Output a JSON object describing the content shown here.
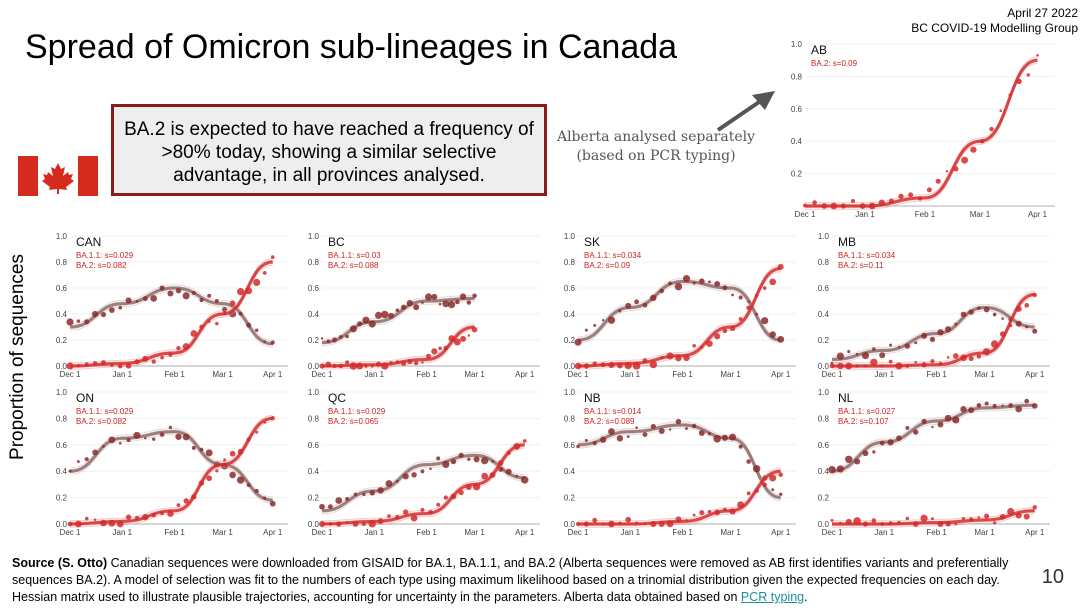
{
  "header": {
    "date": "April 27 2022",
    "org": "BC COVID-19 Modelling Group",
    "title": "Spread of Omicron sub-lineages in Canada"
  },
  "callout": "BA.2 is expected to have reached a frequency of >80% today, showing a similar selective advantage, in all provinces analysed.",
  "alberta_note": "Alberta analysed separately (based on PCR typing)",
  "ylabel": "Proportion of sequences",
  "footer": {
    "source_bold": "Source (S. Otto)",
    "text": " Canadian sequences were downloaded from GISAID for BA.1, BA.1.1, and BA.2 (Alberta sequences were removed as AB first identifies variants and preferentially sequences BA.2). A model of selection was fit to the numbers of each type using maximum likelihood based on a trinomial distribution given the expected frequencies on each day. Hessian matrix used to illustrate plausible trajectories, accounting for uncertainty in the parameters. Alberta data obtained based on ",
    "link": "PCR typing",
    "end": "."
  },
  "page_number": "10",
  "colors": {
    "ba11": "#8b2a2a",
    "ba11_line": "#8a6a6a",
    "ba2": "#d42a2a",
    "callout_border": "#8b1a1a",
    "link": "#1a8fa0"
  },
  "chart_data": {
    "type": "line",
    "x_ticks": [
      "Dec 1",
      "Jan 1",
      "Feb 1",
      "Mar 1",
      "Apr 1"
    ],
    "y_ticks": [
      "0.0",
      "0.2",
      "0.4",
      "0.6",
      "0.8",
      "1.0"
    ],
    "ylim": [
      0,
      1
    ],
    "panels": [
      {
        "name": "CAN",
        "ba11_label": "BA.1.1: s=0.029",
        "ba2_label": "BA.2: s=0.082",
        "series": [
          {
            "name": "BA.1.1",
            "x": [
              "Dec 1",
              "Jan 1",
              "Feb 1",
              "Mar 1",
              "Apr 1"
            ],
            "y": [
              0.3,
              0.48,
              0.6,
              0.48,
              0.17
            ]
          },
          {
            "name": "BA.2",
            "x": [
              "Dec 1",
              "Jan 1",
              "Feb 1",
              "Mar 1",
              "Apr 1"
            ],
            "y": [
              0.0,
              0.02,
              0.1,
              0.4,
              0.8
            ]
          }
        ]
      },
      {
        "name": "BC",
        "ba11_label": "BA.1.1: s=0.03",
        "ba2_label": "BA.2: s=0.088",
        "series": [
          {
            "name": "BA.1.1",
            "x": [
              "Dec 1",
              "Jan 1",
              "Feb 1",
              "Mar 1"
            ],
            "y": [
              0.18,
              0.34,
              0.5,
              0.52
            ]
          },
          {
            "name": "BA.2",
            "x": [
              "Dec 1",
              "Jan 1",
              "Feb 1",
              "Mar 1"
            ],
            "y": [
              0.0,
              0.01,
              0.05,
              0.3
            ]
          }
        ]
      },
      {
        "name": "SK",
        "ba11_label": "BA.1.1: s=0.034",
        "ba2_label": "BA.2: s=0.09",
        "series": [
          {
            "name": "BA.1.1",
            "x": [
              "Dec 1",
              "Jan 1",
              "Feb 1",
              "Mar 1",
              "Apr 1"
            ],
            "y": [
              0.2,
              0.45,
              0.65,
              0.6,
              0.2
            ]
          },
          {
            "name": "BA.2",
            "x": [
              "Dec 1",
              "Jan 1",
              "Feb 1",
              "Mar 1",
              "Apr 1"
            ],
            "y": [
              0.0,
              0.02,
              0.08,
              0.3,
              0.75
            ]
          }
        ]
      },
      {
        "name": "MB",
        "ba11_label": "BA.1.1: s=0.034",
        "ba2_label": "BA.2: s=0.11",
        "series": [
          {
            "name": "BA.1.1",
            "x": [
              "Dec 1",
              "Jan 1",
              "Feb 1",
              "Mar 1",
              "Apr 1"
            ],
            "y": [
              0.05,
              0.12,
              0.25,
              0.45,
              0.3
            ]
          },
          {
            "name": "BA.2",
            "x": [
              "Dec 1",
              "Jan 1",
              "Feb 1",
              "Mar 1",
              "Apr 1"
            ],
            "y": [
              0.0,
              0.0,
              0.01,
              0.1,
              0.55
            ]
          }
        ]
      },
      {
        "name": "ON",
        "ba11_label": "BA.1.1: s=0.029",
        "ba2_label": "BA.2: s=0.082",
        "series": [
          {
            "name": "BA.1.1",
            "x": [
              "Dec 1",
              "Jan 1",
              "Feb 1",
              "Mar 1",
              "Apr 1"
            ],
            "y": [
              0.4,
              0.65,
              0.7,
              0.45,
              0.18
            ]
          },
          {
            "name": "BA.2",
            "x": [
              "Dec 1",
              "Jan 1",
              "Feb 1",
              "Mar 1",
              "Apr 1"
            ],
            "y": [
              0.0,
              0.02,
              0.1,
              0.45,
              0.8
            ]
          }
        ]
      },
      {
        "name": "QC",
        "ba11_label": "BA.1.1: s=0.029",
        "ba2_label": "BA.2: s=0.065",
        "series": [
          {
            "name": "BA.1.1",
            "x": [
              "Dec 1",
              "Jan 1",
              "Feb 1",
              "Mar 1",
              "Apr 1"
            ],
            "y": [
              0.1,
              0.25,
              0.45,
              0.52,
              0.35
            ]
          },
          {
            "name": "BA.2",
            "x": [
              "Dec 1",
              "Jan 1",
              "Feb 1",
              "Mar 1",
              "Apr 1"
            ],
            "y": [
              0.0,
              0.02,
              0.08,
              0.3,
              0.6
            ]
          }
        ]
      },
      {
        "name": "NB",
        "ba11_label": "BA.1.1: s=0.014",
        "ba2_label": "BA.2: s=0.089",
        "series": [
          {
            "name": "BA.1.1",
            "x": [
              "Dec 1",
              "Jan 1",
              "Feb 1",
              "Mar 1",
              "Apr 1"
            ],
            "y": [
              0.6,
              0.7,
              0.75,
              0.65,
              0.2
            ]
          },
          {
            "name": "BA.2",
            "x": [
              "Dec 1",
              "Jan 1",
              "Feb 1",
              "Mar 1",
              "Apr 1"
            ],
            "y": [
              0.0,
              0.0,
              0.02,
              0.1,
              0.4
            ]
          }
        ]
      },
      {
        "name": "NL",
        "ba11_label": "BA.1.1: s=0.027",
        "ba2_label": "BA.2: s=0.107",
        "series": [
          {
            "name": "BA.1.1",
            "x": [
              "Dec 1",
              "Jan 1",
              "Feb 1",
              "Mar 1",
              "Apr 1"
            ],
            "y": [
              0.4,
              0.62,
              0.78,
              0.88,
              0.9
            ]
          },
          {
            "name": "BA.2",
            "x": [
              "Dec 1",
              "Jan 1",
              "Feb 1",
              "Mar 1",
              "Apr 1"
            ],
            "y": [
              0.0,
              0.0,
              0.01,
              0.03,
              0.1
            ]
          }
        ]
      },
      {
        "name": "AB",
        "ba11_label": "",
        "ba2_label": "BA.2: s=0.09",
        "series": [
          {
            "name": "BA.2",
            "x": [
              "Dec 1",
              "Jan 1",
              "Feb 1",
              "Mar 1",
              "Apr 1"
            ],
            "y": [
              0.0,
              0.0,
              0.05,
              0.4,
              0.9
            ]
          }
        ]
      }
    ]
  }
}
